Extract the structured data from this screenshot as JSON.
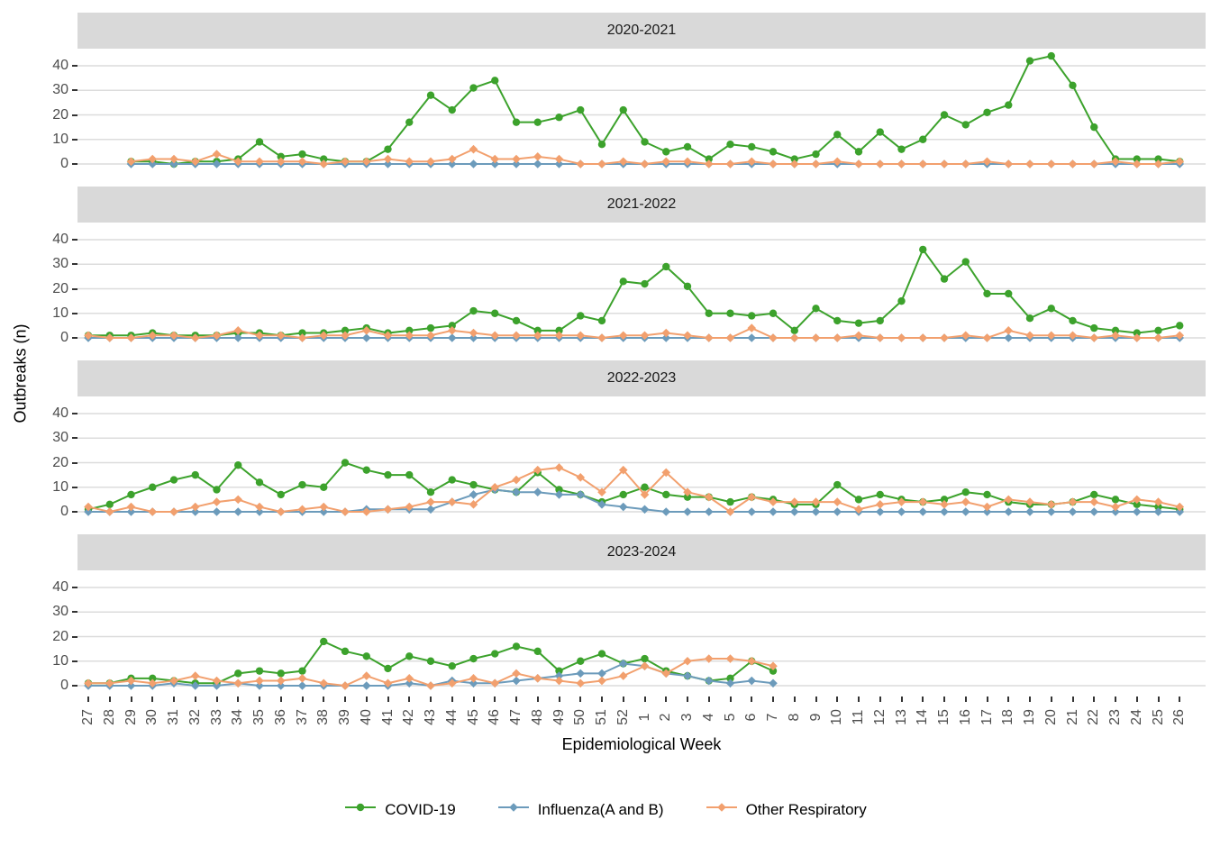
{
  "chart_data": {
    "type": "line",
    "xlabel": "Epidemiological Week",
    "ylabel": "Outbreaks (n)",
    "ylim": [
      0,
      46
    ],
    "yticks": [
      0,
      10,
      20,
      30,
      40
    ],
    "grid": "horizontal-major-only",
    "legend_position": "bottom",
    "x_labels": [
      "27",
      "28",
      "29",
      "30",
      "31",
      "32",
      "33",
      "34",
      "35",
      "36",
      "37",
      "38",
      "39",
      "40",
      "41",
      "42",
      "43",
      "44",
      "45",
      "46",
      "47",
      "48",
      "49",
      "50",
      "51",
      "52",
      "1",
      "2",
      "3",
      "4",
      "5",
      "6",
      "7",
      "8",
      "9",
      "10",
      "11",
      "12",
      "13",
      "14",
      "15",
      "16",
      "17",
      "18",
      "19",
      "20",
      "21",
      "22",
      "23",
      "24",
      "25",
      "26"
    ],
    "series_meta": [
      {
        "key": "covid",
        "label": "COVID-19",
        "color": "#3CA22C",
        "marker": "circle"
      },
      {
        "key": "influenza",
        "label": "Influenza(A and B)",
        "color": "#6C9BBB",
        "marker": "diamond"
      },
      {
        "key": "other",
        "label": "Other Respiratory",
        "color": "#F2A06E",
        "marker": "diamond"
      }
    ],
    "facets": [
      {
        "title": "2020-2021",
        "series": {
          "covid": [
            null,
            null,
            1,
            1,
            0,
            1,
            1,
            2,
            9,
            3,
            4,
            2,
            1,
            1,
            6,
            17,
            28,
            22,
            31,
            34,
            17,
            17,
            19,
            22,
            8,
            22,
            9,
            5,
            7,
            2,
            8,
            7,
            5,
            2,
            4,
            12,
            5,
            13,
            6,
            10,
            20,
            16,
            21,
            24,
            42,
            44,
            32,
            15,
            2,
            2,
            2,
            1
          ],
          "influenza": [
            null,
            null,
            0,
            0,
            0,
            0,
            0,
            0,
            0,
            0,
            0,
            0,
            0,
            0,
            0,
            0,
            0,
            0,
            0,
            0,
            0,
            0,
            0,
            0,
            0,
            0,
            0,
            0,
            0,
            0,
            0,
            0,
            0,
            0,
            0,
            0,
            0,
            0,
            0,
            0,
            0,
            0,
            0,
            0,
            0,
            0,
            0,
            0,
            0,
            0,
            0,
            0
          ],
          "other": [
            null,
            null,
            1,
            2,
            2,
            1,
            4,
            1,
            1,
            1,
            1,
            0,
            1,
            1,
            2,
            1,
            1,
            2,
            6,
            2,
            2,
            3,
            2,
            0,
            0,
            1,
            0,
            1,
            1,
            0,
            0,
            1,
            0,
            0,
            0,
            1,
            0,
            0,
            0,
            0,
            0,
            0,
            1,
            0,
            0,
            0,
            0,
            0,
            1,
            0,
            0,
            1
          ]
        }
      },
      {
        "title": "2021-2022",
        "series": {
          "covid": [
            1,
            1,
            1,
            2,
            1,
            1,
            1,
            2,
            2,
            1,
            2,
            2,
            3,
            4,
            2,
            3,
            4,
            5,
            11,
            10,
            7,
            3,
            3,
            9,
            7,
            23,
            22,
            29,
            21,
            10,
            10,
            9,
            10,
            3,
            12,
            7,
            6,
            7,
            15,
            36,
            24,
            31,
            18,
            18,
            8,
            12,
            7,
            4,
            3,
            2,
            3,
            5
          ],
          "influenza": [
            0,
            0,
            0,
            0,
            0,
            0,
            0,
            0,
            0,
            0,
            0,
            0,
            0,
            0,
            0,
            0,
            0,
            0,
            0,
            0,
            0,
            0,
            0,
            0,
            0,
            0,
            0,
            0,
            0,
            0,
            0,
            0,
            0,
            0,
            0,
            0,
            0,
            0,
            0,
            0,
            0,
            0,
            0,
            0,
            0,
            0,
            0,
            0,
            0,
            0,
            0,
            0
          ],
          "other": [
            1,
            0,
            0,
            1,
            1,
            0,
            1,
            3,
            1,
            1,
            0,
            1,
            1,
            3,
            1,
            1,
            1,
            3,
            2,
            1,
            1,
            1,
            1,
            1,
            0,
            1,
            1,
            2,
            1,
            0,
            0,
            4,
            0,
            0,
            0,
            0,
            1,
            0,
            0,
            0,
            0,
            1,
            0,
            3,
            1,
            1,
            1,
            0,
            1,
            0,
            0,
            1
          ]
        }
      },
      {
        "title": "2022-2023",
        "series": {
          "covid": [
            1,
            3,
            7,
            10,
            13,
            15,
            9,
            19,
            12,
            7,
            11,
            10,
            20,
            17,
            15,
            15,
            8,
            13,
            11,
            9,
            8,
            16,
            9,
            7,
            4,
            7,
            10,
            7,
            6,
            6,
            4,
            6,
            5,
            3,
            3,
            11,
            5,
            7,
            5,
            4,
            5,
            8,
            7,
            4,
            3,
            3,
            4,
            7,
            5,
            3,
            2,
            1
          ],
          "influenza": [
            0,
            0,
            0,
            0,
            0,
            0,
            0,
            0,
            0,
            0,
            0,
            0,
            0,
            1,
            1,
            1,
            1,
            4,
            7,
            9,
            8,
            8,
            7,
            7,
            3,
            2,
            1,
            0,
            0,
            0,
            0,
            0,
            0,
            0,
            0,
            0,
            0,
            0,
            0,
            0,
            0,
            0,
            0,
            0,
            0,
            0,
            0,
            0,
            0,
            0,
            0,
            0
          ],
          "other": [
            2,
            0,
            2,
            0,
            0,
            2,
            4,
            5,
            2,
            0,
            1,
            2,
            0,
            0,
            1,
            2,
            4,
            4,
            3,
            10,
            13,
            17,
            18,
            14,
            8,
            17,
            7,
            16,
            8,
            6,
            0,
            6,
            4,
            4,
            4,
            4,
            1,
            3,
            4,
            4,
            3,
            4,
            2,
            5,
            4,
            3,
            4,
            4,
            2,
            5,
            4,
            2
          ]
        }
      },
      {
        "title": "2023-2024",
        "series": {
          "covid": [
            1,
            1,
            3,
            3,
            2,
            1,
            1,
            5,
            6,
            5,
            6,
            18,
            14,
            12,
            7,
            12,
            10,
            8,
            11,
            13,
            16,
            14,
            6,
            10,
            13,
            9,
            11,
            6,
            4,
            2,
            3,
            10,
            6,
            null,
            null,
            null,
            null,
            null,
            null,
            null,
            null,
            null,
            null,
            null,
            null,
            null,
            null,
            null,
            null,
            null,
            null,
            null
          ],
          "influenza": [
            0,
            0,
            0,
            0,
            1,
            0,
            0,
            1,
            0,
            0,
            0,
            0,
            0,
            0,
            0,
            1,
            0,
            2,
            1,
            1,
            2,
            3,
            4,
            5,
            5,
            9,
            8,
            5,
            4,
            2,
            1,
            2,
            1,
            null,
            null,
            null,
            null,
            null,
            null,
            null,
            null,
            null,
            null,
            null,
            null,
            null,
            null,
            null,
            null,
            null,
            null,
            null
          ],
          "other": [
            1,
            1,
            2,
            1,
            2,
            4,
            2,
            1,
            2,
            2,
            3,
            1,
            0,
            4,
            1,
            3,
            0,
            1,
            3,
            1,
            5,
            3,
            2,
            1,
            2,
            4,
            8,
            5,
            10,
            11,
            11,
            10,
            8,
            null,
            null,
            null,
            null,
            null,
            null,
            null,
            null,
            null,
            null,
            null,
            null,
            null,
            null,
            null,
            null,
            null,
            null,
            null
          ]
        }
      }
    ]
  },
  "style": {
    "strip_bg": "#D9D9D9",
    "grid_color": "#DCDCDC",
    "axis_text_color": "#4D4D4D",
    "tick_color": "#333333",
    "panel_bg": "#FFFFFF"
  }
}
